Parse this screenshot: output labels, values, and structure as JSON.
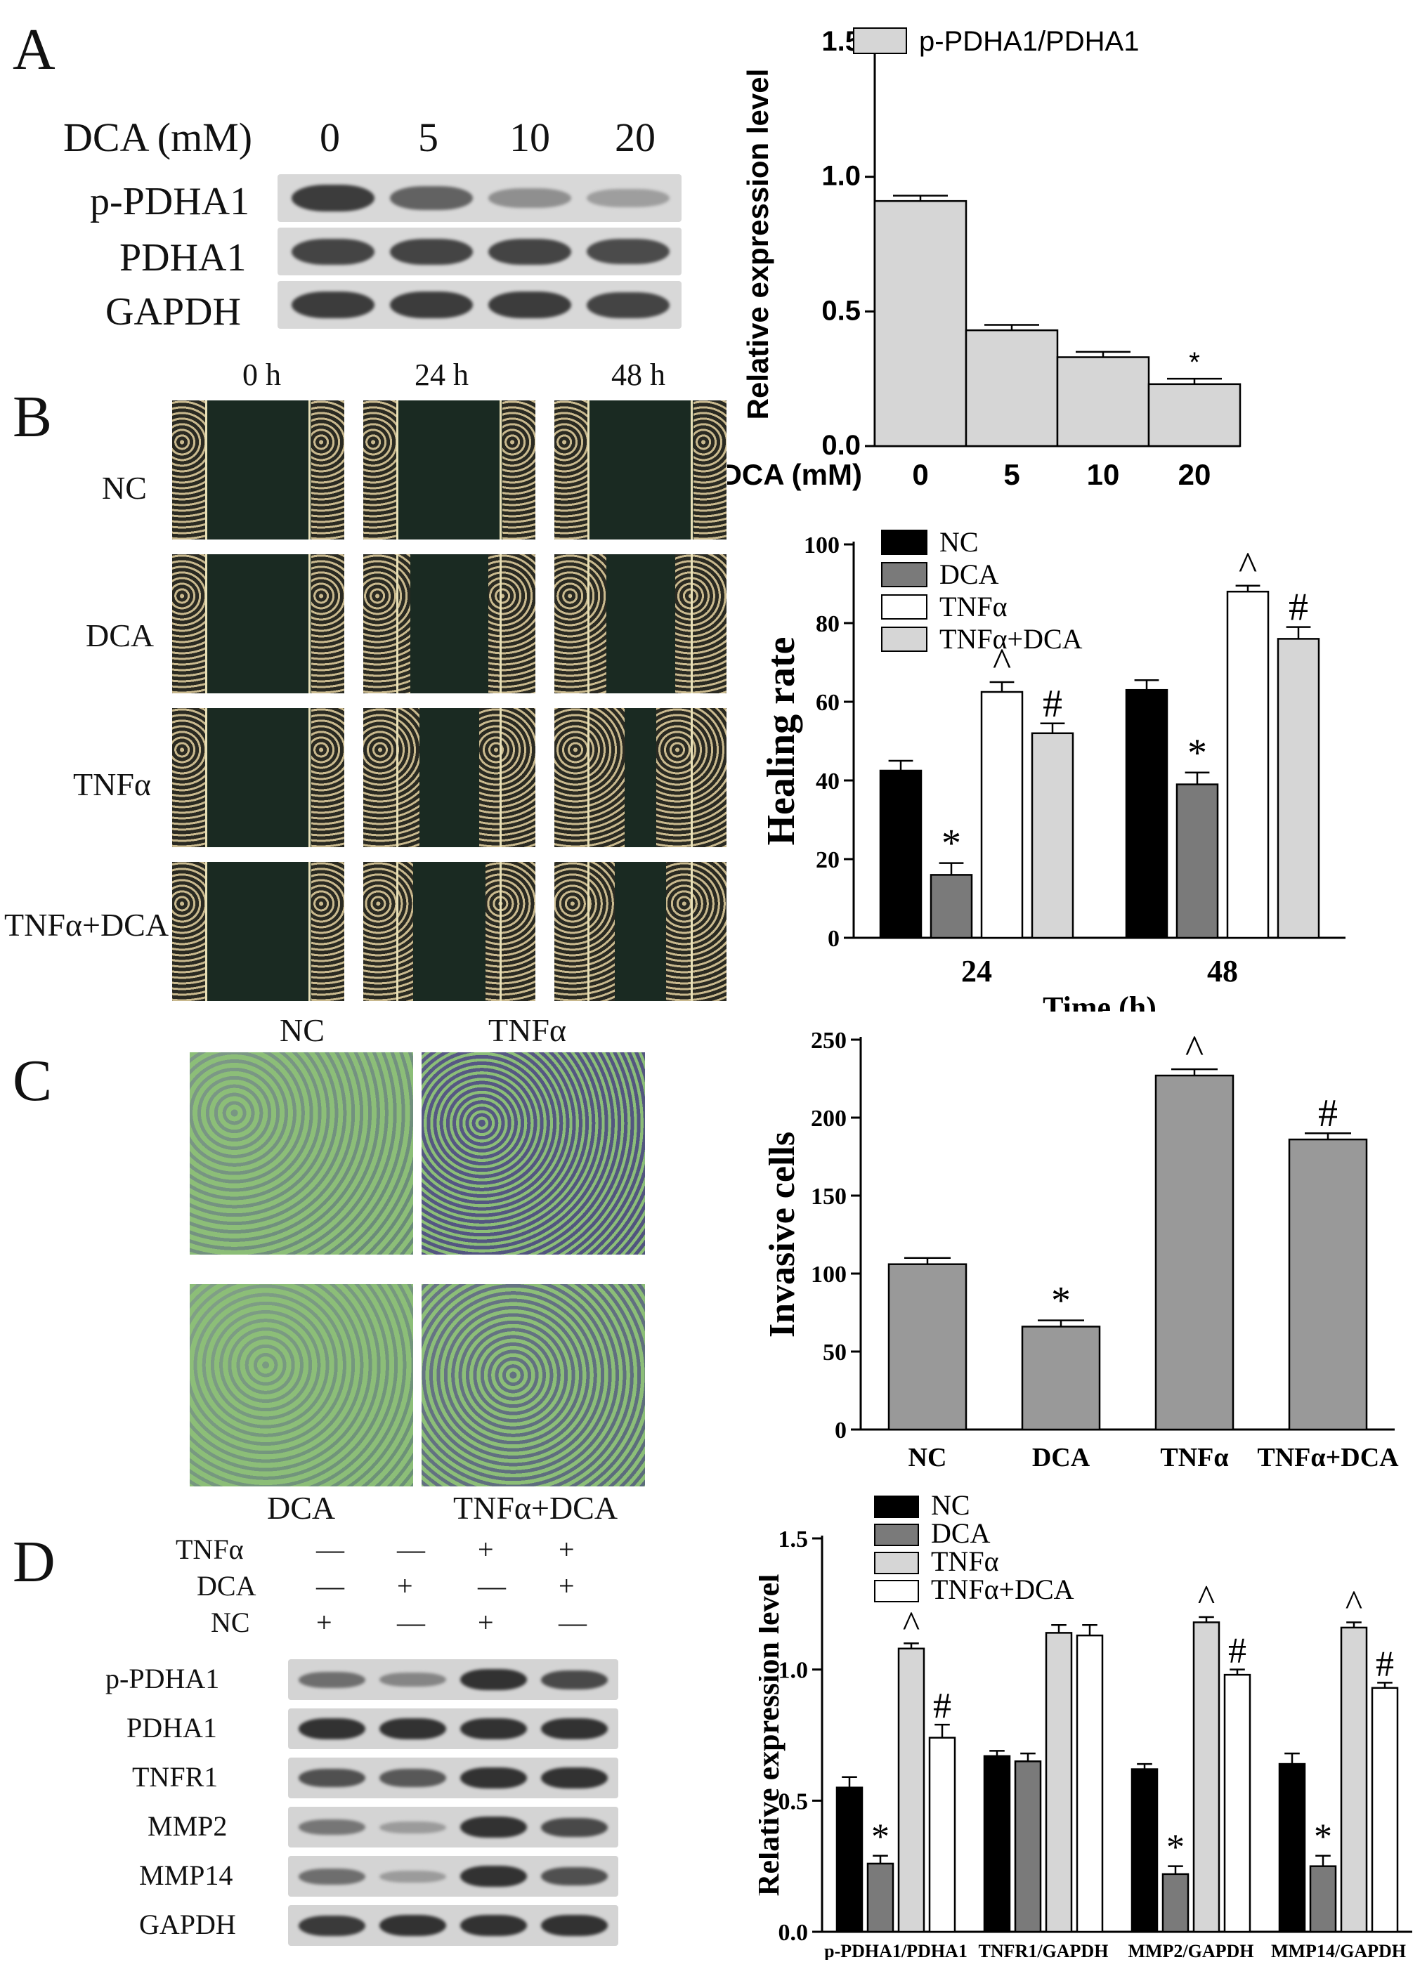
{
  "panels": {
    "a": {
      "letter": "A",
      "dca_label": "DCA (mM)",
      "doses": [
        "0",
        "5",
        "10",
        "20"
      ],
      "rows": [
        "p-PDHA1",
        "PDHA1",
        "GAPDH"
      ],
      "blot_intensity": [
        [
          1.0,
          0.75,
          0.45,
          0.35
        ],
        [
          0.95,
          0.95,
          0.95,
          0.9
        ],
        [
          1.0,
          1.0,
          1.0,
          0.95
        ]
      ]
    },
    "b": {
      "letter": "B",
      "times": [
        "0 h",
        "24 h",
        "48 h"
      ],
      "rows": [
        "NC",
        "DCA",
        "TNFα",
        "TNFα+DCA"
      ]
    },
    "c": {
      "letter": "C",
      "top_labels": [
        "NC",
        "TNFα"
      ],
      "bottom_labels": [
        "DCA",
        "TNFα+DCA"
      ]
    },
    "d": {
      "letter": "D",
      "treatments": [
        {
          "name": "TNFα",
          "signs": [
            "—",
            "—",
            "+",
            "+"
          ]
        },
        {
          "name": "DCA",
          "signs": [
            "—",
            "+",
            "—",
            "+"
          ]
        },
        {
          "name": "NC",
          "signs": [
            "+",
            "—",
            "+",
            "—"
          ]
        }
      ],
      "rows": [
        "p-PDHA1",
        "PDHA1",
        "TNFR1",
        "MMP2",
        "MMP14",
        "GAPDH"
      ],
      "blot_intensity": [
        [
          0.6,
          0.45,
          1.0,
          0.85
        ],
        [
          1.0,
          1.0,
          1.0,
          1.0
        ],
        [
          0.8,
          0.75,
          1.0,
          1.0
        ],
        [
          0.55,
          0.3,
          1.0,
          0.85
        ],
        [
          0.6,
          0.3,
          1.0,
          0.8
        ],
        [
          0.95,
          1.0,
          1.0,
          1.0
        ]
      ]
    }
  },
  "chart_data": [
    {
      "id": "chart-a",
      "type": "bar",
      "categories": [
        "0",
        "5",
        "10",
        "20"
      ],
      "xlabel_prefix": "DCA (mM)",
      "ylabel": "Relative expression level",
      "ylim": [
        0,
        1.5
      ],
      "yticks": [
        "0.0",
        "0.5",
        "1.0",
        "1.5"
      ],
      "series": [
        {
          "name": "p-PDHA1/PDHA1",
          "values": [
            0.91,
            0.43,
            0.33,
            0.23
          ],
          "errors": [
            0.02,
            0.02,
            0.02,
            0.02
          ],
          "color": "#d6d6d6"
        }
      ],
      "annotations": [
        "",
        "",
        "",
        "*"
      ],
      "legend": "top-left"
    },
    {
      "id": "chart-b",
      "type": "bar",
      "categories": [
        "24",
        "48"
      ],
      "xlabel": "Time (h)",
      "ylabel": "Healing rate",
      "ylim": [
        0,
        100
      ],
      "yticks": [
        "0",
        "20",
        "40",
        "60",
        "80",
        "100"
      ],
      "series": [
        {
          "name": "NC",
          "values": [
            42.5,
            63
          ],
          "errors": [
            2.5,
            2.5
          ],
          "color": "#000000",
          "marks": [
            "",
            ""
          ]
        },
        {
          "name": "DCA",
          "values": [
            16,
            39
          ],
          "errors": [
            3,
            3
          ],
          "color": "#7a7a7a",
          "marks": [
            "*",
            "*"
          ]
        },
        {
          "name": "TNFα",
          "values": [
            62.5,
            88
          ],
          "errors": [
            2.5,
            1.5
          ],
          "color": "#ffffff",
          "marks": [
            "^",
            "^"
          ]
        },
        {
          "name": "TNFα+DCA",
          "values": [
            52,
            76
          ],
          "errors": [
            2.5,
            3
          ],
          "color": "#d6d6d6",
          "marks": [
            "#",
            "#"
          ]
        }
      ],
      "legend": "top-left"
    },
    {
      "id": "chart-c",
      "type": "bar",
      "categories": [
        "NC",
        "DCA",
        "TNFα",
        "TNFα+DCA"
      ],
      "ylabel": "Invasive cells",
      "ylim": [
        0,
        250
      ],
      "yticks": [
        "0",
        "50",
        "100",
        "150",
        "200",
        "250"
      ],
      "series": [
        {
          "values": [
            106,
            66,
            227,
            186
          ],
          "errors": [
            4,
            4,
            4,
            4
          ],
          "color": "#999999"
        }
      ],
      "annotations": [
        "",
        "*",
        "^",
        "#"
      ]
    },
    {
      "id": "chart-d",
      "type": "bar",
      "categories": [
        "p-PDHA1/PDHA1",
        "TNFR1/GAPDH",
        "MMP2/GAPDH",
        "MMP14/GAPDH"
      ],
      "ylabel": "Relative expression level",
      "ylim": [
        0,
        1.5
      ],
      "yticks": [
        "0.0",
        "0.5",
        "1.0",
        "1.5"
      ],
      "series": [
        {
          "name": "NC",
          "values": [
            0.55,
            0.67,
            0.62,
            0.64
          ],
          "errors": [
            0.04,
            0.02,
            0.02,
            0.04
          ],
          "color": "#000000",
          "marks": [
            "",
            "",
            "",
            ""
          ]
        },
        {
          "name": "DCA",
          "values": [
            0.26,
            0.65,
            0.22,
            0.25
          ],
          "errors": [
            0.03,
            0.03,
            0.03,
            0.04
          ],
          "color": "#7a7a7a",
          "marks": [
            "*",
            "",
            "*",
            "*"
          ]
        },
        {
          "name": "TNFα",
          "values": [
            1.08,
            1.14,
            1.18,
            1.16
          ],
          "errors": [
            0.02,
            0.03,
            0.02,
            0.02
          ],
          "color": "#d6d6d6",
          "marks": [
            "^",
            "",
            "^",
            "^"
          ]
        },
        {
          "name": "TNFα+DCA",
          "values": [
            0.74,
            1.13,
            0.98,
            0.93
          ],
          "errors": [
            0.05,
            0.04,
            0.02,
            0.02
          ],
          "color": "#ffffff",
          "marks": [
            "#",
            "",
            "#",
            "#"
          ]
        }
      ],
      "legend": "top-left"
    }
  ]
}
